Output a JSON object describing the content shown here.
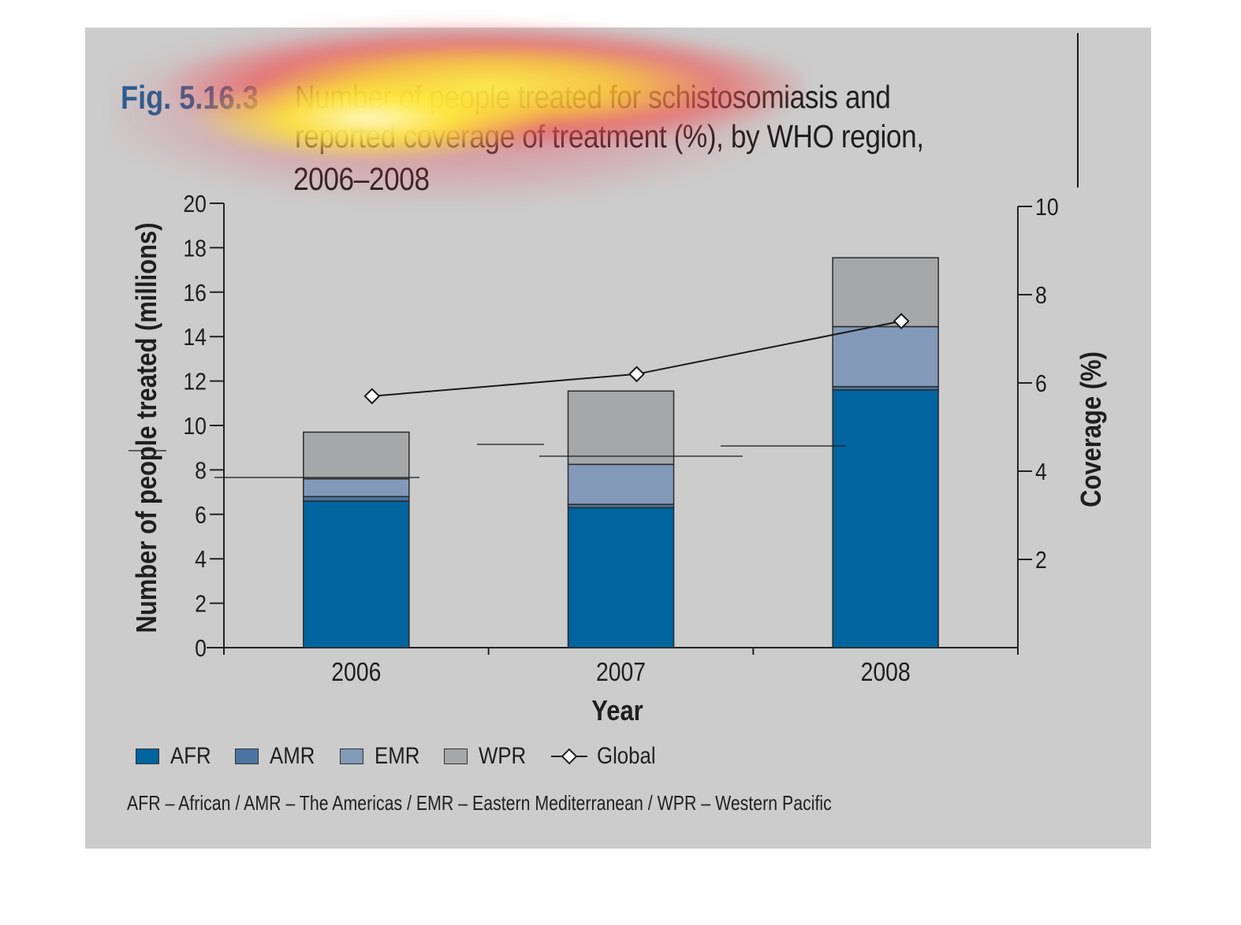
{
  "figure": {
    "label": "Fig. 5.16.3",
    "title_lines": [
      "Number of people treated for schistosomiasis and",
      "reported coverage of treatment (%), by WHO region,",
      "2006–2008"
    ],
    "footnote": "AFR – African / AMR – The Americas / EMR – Eastern Mediterranean / WPR – Western Pacific"
  },
  "colors": {
    "AFR": "#00649e",
    "AMR": "#4a74a2",
    "EMR": "#8399b9",
    "WPR": "#a6a7a9",
    "panel": "#cccccc"
  },
  "chart_data": {
    "type": "bar",
    "stacked": true,
    "categories": [
      "2006",
      "2007",
      "2008"
    ],
    "xlabel": "Year",
    "ylabel": "Number of people treated (millions)",
    "y2label": "Coverage (%)",
    "ylim": [
      0,
      20
    ],
    "yticks": [
      0,
      2,
      4,
      6,
      8,
      10,
      12,
      14,
      16,
      18,
      20
    ],
    "y2lim": [
      0,
      10
    ],
    "y2ticks": [
      2,
      4,
      6,
      8,
      10
    ],
    "series": [
      {
        "name": "AFR",
        "values": [
          6.6,
          6.3,
          11.6
        ]
      },
      {
        "name": "AMR",
        "values": [
          0.2,
          0.15,
          0.15
        ]
      },
      {
        "name": "EMR",
        "values": [
          0.8,
          1.8,
          2.7
        ]
      },
      {
        "name": "WPR",
        "values": [
          2.1,
          3.3,
          3.1
        ]
      }
    ],
    "line_series": {
      "name": "Global",
      "axis": "right",
      "values": [
        5.7,
        6.2,
        7.4
      ]
    },
    "legend_position": "bottom",
    "grid": false
  }
}
